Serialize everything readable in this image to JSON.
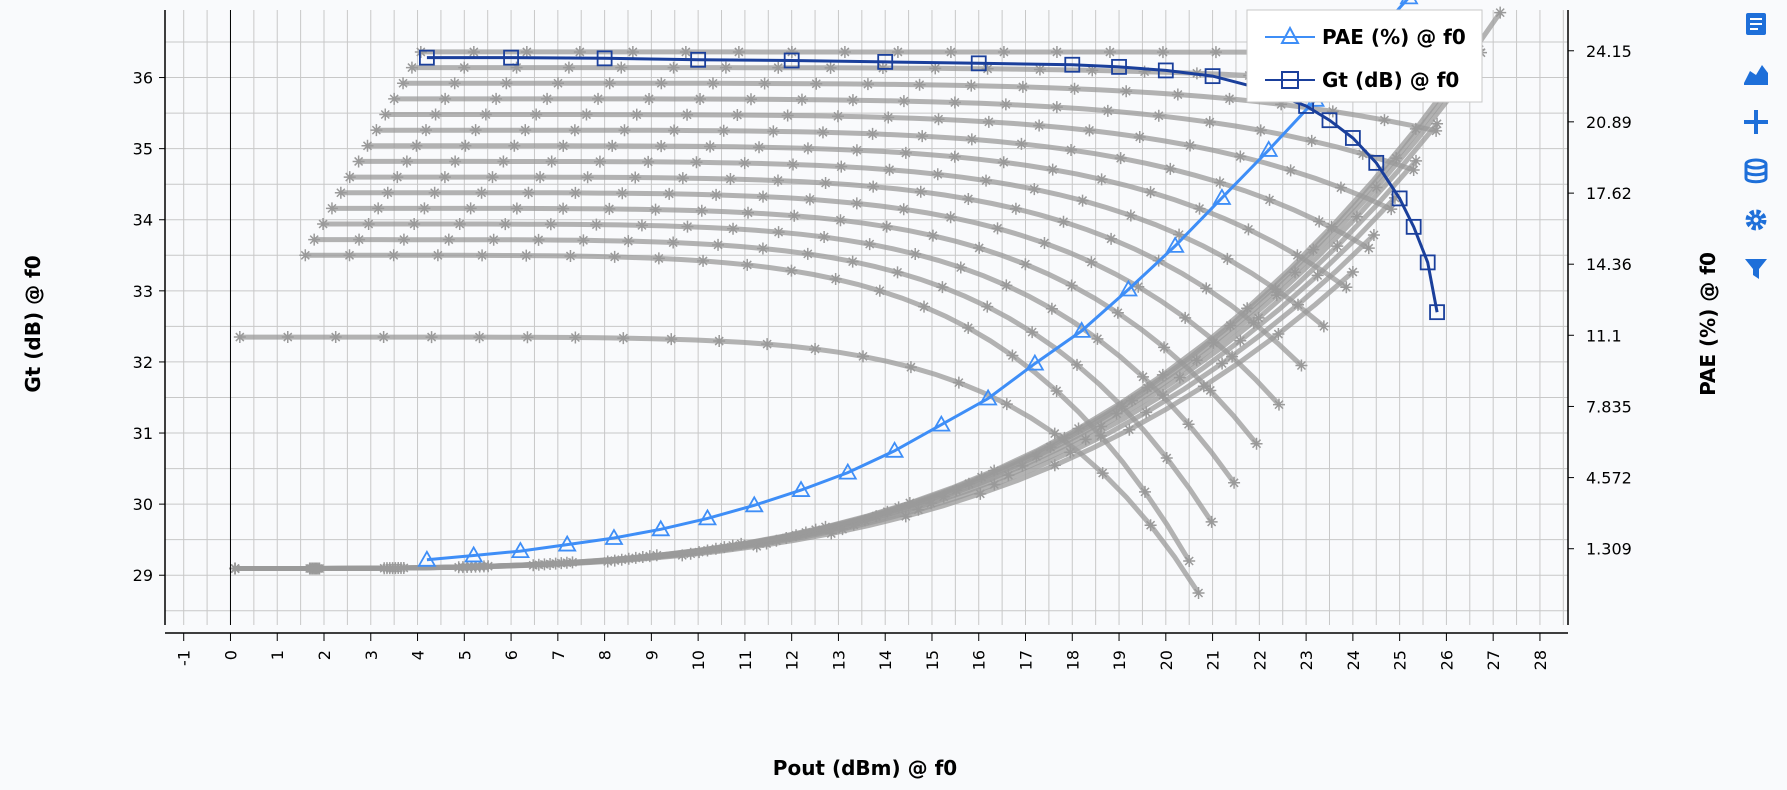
{
  "chart_data": {
    "type": "line",
    "xlabel": "Pout (dBm) @ f0",
    "ylabel_left": "Gt (dB) @ f0",
    "ylabel_right": "PAE (%) @ f0",
    "xlim": [
      -1.4,
      28.6
    ],
    "ylim_left": [
      28.3,
      36.95
    ],
    "ylim_right": [
      -2.19,
      26.02
    ],
    "x_ticks": [
      -1,
      0,
      1,
      2,
      3,
      4,
      5,
      6,
      7,
      8,
      9,
      10,
      11,
      12,
      13,
      14,
      15,
      16,
      17,
      18,
      19,
      20,
      21,
      22,
      23,
      24,
      25,
      26,
      27,
      28
    ],
    "y_left_ticks": [
      29,
      30,
      31,
      32,
      33,
      34,
      35,
      36
    ],
    "y_right_ticks": [
      "1.309",
      "4.572",
      "7.835",
      "11.1",
      "14.36",
      "17.62",
      "20.89",
      "24.15"
    ],
    "grid": true,
    "legend_position": "top-right",
    "colors": {
      "pae": "#3e8ef7",
      "gt": "#1a3f9b",
      "sweep": "#9a9a9a",
      "grid": "#c8c8c8"
    },
    "series": [
      {
        "name": "PAE (%) @ f0",
        "axis": "right",
        "marker": "triangle",
        "x": [
          4.2,
          5.2,
          6.2,
          7.2,
          8.2,
          9.2,
          10.2,
          11.2,
          12.2,
          13.2,
          14.2,
          15.2,
          16.2,
          17.2,
          18.2,
          19.2,
          20.2,
          21.2,
          22.2,
          23.2,
          24.2,
          25.2,
          25.8
        ],
        "y": [
          0.8,
          1.0,
          1.2,
          1.5,
          1.8,
          2.2,
          2.7,
          3.3,
          4.0,
          4.8,
          5.8,
          7.0,
          8.2,
          9.8,
          11.3,
          13.2,
          15.2,
          17.4,
          19.6,
          21.9,
          24.2,
          26.6,
          28.3
        ]
      },
      {
        "name": "Gt (dB) @ f0",
        "axis": "left",
        "marker": "square",
        "x": [
          4.2,
          6,
          8,
          10,
          12,
          14,
          16,
          18,
          19,
          20,
          21,
          22,
          23,
          23.5,
          24,
          24.5,
          25,
          25.3,
          25.6,
          25.8
        ],
        "y": [
          36.28,
          36.28,
          36.27,
          36.25,
          36.24,
          36.22,
          36.2,
          36.18,
          36.15,
          36.1,
          36.02,
          35.85,
          35.6,
          35.4,
          35.15,
          34.8,
          34.3,
          33.9,
          33.4,
          32.7
        ]
      }
    ]
  },
  "toolbar": {
    "buttons": [
      {
        "icon": "export-icon"
      },
      {
        "icon": "area-chart-icon"
      },
      {
        "icon": "add-marker-icon"
      },
      {
        "icon": "database-icon"
      },
      {
        "icon": "settings-gear-icon"
      },
      {
        "icon": "filter-icon"
      }
    ]
  }
}
